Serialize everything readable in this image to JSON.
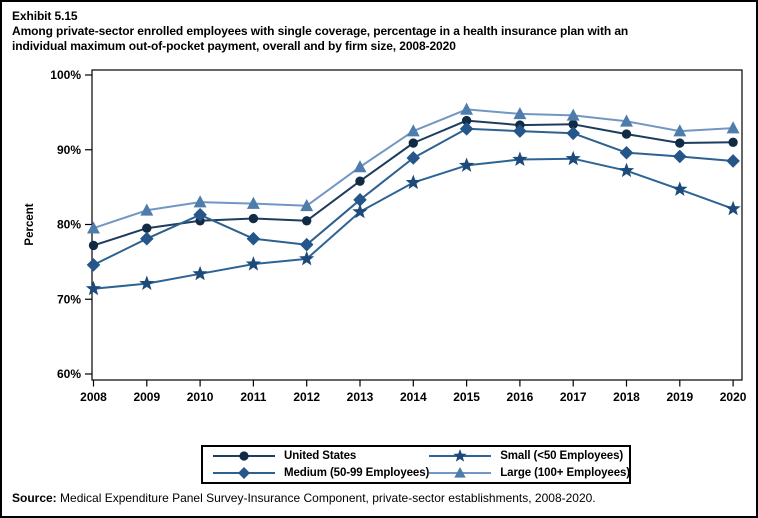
{
  "exhibit_label": "Exhibit 5.15",
  "title_line1": "Among private-sector enrolled employees with single coverage, percentage in a health insurance plan with an",
  "title_line2": "individual maximum out-of-pocket payment, overall and by firm size, 2008-2020",
  "source": {
    "label": "Source:",
    "text": " Medical Expenditure Panel Survey-Insurance Component, private-sector establishments, 2008-2020."
  },
  "chart_data": {
    "type": "line",
    "title": "Percentage in a plan with an individual maximum out-of-pocket payment, by firm size, 2008-2020",
    "xlabel": "",
    "ylabel": "Percent",
    "ylim": [
      60,
      100
    ],
    "y_ticks": [
      60,
      70,
      80,
      90,
      100
    ],
    "y_tick_suffix": "%",
    "grid": false,
    "legend_position": "bottom",
    "x": [
      2008,
      2009,
      2010,
      2011,
      2012,
      2013,
      2014,
      2015,
      2016,
      2017,
      2018,
      2019,
      2020
    ],
    "series": [
      {
        "name": "United States",
        "marker": "circle",
        "line_color": "#1d3d5f",
        "marker_color": "#122b45",
        "values": [
          77.2,
          79.5,
          80.5,
          80.8,
          80.5,
          85.8,
          90.9,
          93.9,
          93.3,
          93.4,
          92.1,
          90.9,
          91.0
        ]
      },
      {
        "name": "Medium (50-99 Employees)",
        "marker": "diamond",
        "line_color": "#2d618f",
        "marker_color": "#24568a",
        "values": [
          74.6,
          78.1,
          81.3,
          78.1,
          77.3,
          83.3,
          88.9,
          92.8,
          92.5,
          92.2,
          89.6,
          89.1,
          88.5
        ]
      },
      {
        "name": "Small (<50 Employees)",
        "marker": "star",
        "line_color": "#2d6496",
        "marker_color": "#1d4a79",
        "values": [
          71.4,
          72.1,
          73.4,
          74.7,
          75.4,
          81.7,
          85.6,
          87.9,
          88.7,
          88.8,
          87.2,
          84.7,
          82.1
        ]
      },
      {
        "name": "Large (100+ Employees)",
        "marker": "triangle",
        "line_color": "#7297c2",
        "marker_color": "#4f7dab",
        "values": [
          79.5,
          81.9,
          83.0,
          82.8,
          82.5,
          87.7,
          92.5,
          95.4,
          94.8,
          94.6,
          93.8,
          92.5,
          92.9
        ]
      }
    ]
  }
}
